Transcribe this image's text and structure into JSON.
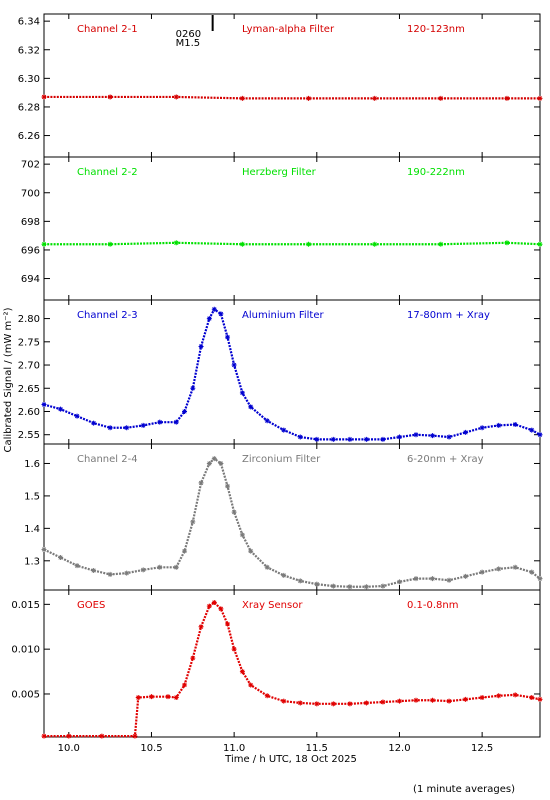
{
  "figure": {
    "xlabel": "Time / h UTC, 18 Oct 2025",
    "ylabel": "Calibrated Signal / (mW m⁻²)",
    "footnote": "(1 minute averages)",
    "flare_marker": {
      "class_label": "M1.5",
      "time_label": "0260",
      "time_h": 10.87
    }
  },
  "chart_data": [
    {
      "type": "scatter",
      "channel": "Channel 2-1",
      "filter": "Lyman-alpha Filter",
      "band": "120-123nm",
      "color": "#d40000",
      "xlim": [
        9.85,
        12.85
      ],
      "ylim": [
        6.245,
        6.345
      ],
      "yticks": [
        "6.26",
        "6.28",
        "6.30",
        "6.32",
        "6.34"
      ],
      "x": [
        9.85,
        10.25,
        10.65,
        11.05,
        11.45,
        11.85,
        12.25,
        12.65,
        12.85
      ],
      "y": [
        6.287,
        6.287,
        6.287,
        6.286,
        6.286,
        6.286,
        6.286,
        6.286,
        6.286
      ]
    },
    {
      "type": "scatter",
      "channel": "Channel 2-2",
      "filter": "Herzberg Filter",
      "band": "190-222nm",
      "color": "#00e000",
      "xlim": [
        9.85,
        12.85
      ],
      "ylim": [
        692.5,
        702.5
      ],
      "yticks": [
        "694",
        "696",
        "698",
        "700",
        "702"
      ],
      "x": [
        9.85,
        10.25,
        10.65,
        11.05,
        11.45,
        11.85,
        12.25,
        12.65,
        12.85
      ],
      "y": [
        696.4,
        696.4,
        696.5,
        696.4,
        696.4,
        696.4,
        696.4,
        696.5,
        696.4
      ]
    },
    {
      "type": "scatter",
      "channel": "Channel 2-3",
      "filter": "Aluminium Filter",
      "band": "17-80nm + Xray",
      "color": "#0000d0",
      "xlim": [
        9.85,
        12.85
      ],
      "ylim": [
        2.53,
        2.84
      ],
      "yticks": [
        "2.55",
        "2.60",
        "2.65",
        "2.70",
        "2.75",
        "2.80"
      ],
      "x": [
        9.85,
        9.95,
        10.05,
        10.15,
        10.25,
        10.35,
        10.45,
        10.55,
        10.65,
        10.7,
        10.75,
        10.8,
        10.85,
        10.88,
        10.92,
        10.96,
        11.0,
        11.05,
        11.1,
        11.2,
        11.3,
        11.4,
        11.5,
        11.6,
        11.7,
        11.8,
        11.9,
        12.0,
        12.1,
        12.2,
        12.3,
        12.4,
        12.5,
        12.6,
        12.7,
        12.8,
        12.85
      ],
      "y": [
        2.615,
        2.605,
        2.59,
        2.575,
        2.565,
        2.565,
        2.57,
        2.577,
        2.577,
        2.6,
        2.65,
        2.74,
        2.8,
        2.82,
        2.81,
        2.76,
        2.7,
        2.64,
        2.61,
        2.58,
        2.56,
        2.545,
        2.54,
        2.54,
        2.54,
        2.54,
        2.54,
        2.545,
        2.55,
        2.548,
        2.545,
        2.555,
        2.565,
        2.57,
        2.572,
        2.56,
        2.55
      ]
    },
    {
      "type": "scatter",
      "channel": "Channel 2-4",
      "filter": "Zirconium Filter",
      "band": "6-20nm + Xray",
      "color": "#7a7a7a",
      "xlim": [
        9.85,
        12.85
      ],
      "ylim": [
        1.21,
        1.66
      ],
      "yticks": [
        "1.3",
        "1.4",
        "1.5",
        "1.6"
      ],
      "x": [
        9.85,
        9.95,
        10.05,
        10.15,
        10.25,
        10.35,
        10.45,
        10.55,
        10.65,
        10.7,
        10.75,
        10.8,
        10.85,
        10.88,
        10.92,
        10.96,
        11.0,
        11.05,
        11.1,
        11.2,
        11.3,
        11.4,
        11.5,
        11.6,
        11.7,
        11.8,
        11.9,
        12.0,
        12.1,
        12.2,
        12.3,
        12.4,
        12.5,
        12.6,
        12.7,
        12.8,
        12.85
      ],
      "y": [
        1.335,
        1.31,
        1.285,
        1.27,
        1.258,
        1.262,
        1.272,
        1.28,
        1.28,
        1.33,
        1.42,
        1.54,
        1.6,
        1.615,
        1.6,
        1.53,
        1.45,
        1.38,
        1.33,
        1.28,
        1.255,
        1.238,
        1.228,
        1.222,
        1.22,
        1.22,
        1.222,
        1.235,
        1.245,
        1.245,
        1.24,
        1.252,
        1.265,
        1.275,
        1.28,
        1.265,
        1.245
      ]
    },
    {
      "type": "scatter",
      "channel": "GOES",
      "filter": "Xray Sensor",
      "band": "0.1-0.8nm",
      "color": "#e00000",
      "xlim": [
        9.85,
        12.85
      ],
      "ylim": [
        0.0002,
        0.0166
      ],
      "yticks": [
        "0.005",
        "0.010",
        "0.015"
      ],
      "x": [
        9.85,
        10.0,
        10.2,
        10.4,
        10.42,
        10.5,
        10.6,
        10.65,
        10.7,
        10.75,
        10.8,
        10.85,
        10.88,
        10.92,
        10.96,
        11.0,
        11.05,
        11.1,
        11.2,
        11.3,
        11.4,
        11.5,
        11.6,
        11.7,
        11.8,
        11.9,
        12.0,
        12.1,
        12.2,
        12.3,
        12.4,
        12.5,
        12.6,
        12.7,
        12.8,
        12.85
      ],
      "y": [
        0.0003,
        0.0003,
        0.0003,
        0.0003,
        0.0046,
        0.0047,
        0.0047,
        0.0046,
        0.006,
        0.009,
        0.0125,
        0.0148,
        0.0152,
        0.0145,
        0.0128,
        0.01,
        0.0075,
        0.006,
        0.0048,
        0.0042,
        0.004,
        0.0039,
        0.0039,
        0.0039,
        0.004,
        0.0041,
        0.0042,
        0.0043,
        0.0043,
        0.0042,
        0.0044,
        0.0046,
        0.0048,
        0.0049,
        0.0046,
        0.0044
      ]
    }
  ],
  "xaxis": {
    "xlim": [
      9.85,
      12.85
    ],
    "ticks": [
      "10.0",
      "10.5",
      "11.0",
      "11.5",
      "12.0",
      "12.5"
    ]
  }
}
